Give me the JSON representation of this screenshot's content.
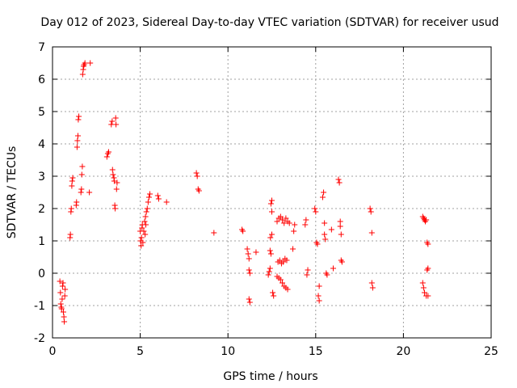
{
  "chart_data": {
    "type": "scatter",
    "title": "Day 012 of 2023, Sidereal Day-to-day VTEC variation (SDTVAR) for receiver usud",
    "xlabel": "GPS time / hours",
    "ylabel": "SDTVAR / TECUs",
    "xlim": [
      0,
      25
    ],
    "ylim": [
      -2,
      7
    ],
    "xticks": [
      0,
      5,
      10,
      15,
      20,
      25
    ],
    "yticks": [
      -2,
      -1,
      0,
      1,
      2,
      3,
      4,
      5,
      6,
      7
    ],
    "grid": true,
    "marker": "plus",
    "color": "#ff0000",
    "series": [
      {
        "points": [
          [
            0.42,
            -0.25
          ],
          [
            0.45,
            -0.6
          ],
          [
            0.47,
            -0.95
          ],
          [
            0.5,
            -1.05
          ],
          [
            0.52,
            -1.1
          ],
          [
            0.55,
            -0.8
          ],
          [
            0.57,
            -0.4
          ],
          [
            0.6,
            -0.3
          ],
          [
            0.62,
            -1.2
          ],
          [
            0.65,
            -1.35
          ],
          [
            0.67,
            -1.5
          ],
          [
            0.7,
            -0.7
          ],
          [
            0.72,
            -0.5
          ],
          [
            1.0,
            1.1
          ],
          [
            1.02,
            1.2
          ],
          [
            1.05,
            1.9
          ],
          [
            1.07,
            2.0
          ],
          [
            1.1,
            2.7
          ],
          [
            1.12,
            2.85
          ],
          [
            1.15,
            2.95
          ],
          [
            1.35,
            2.1
          ],
          [
            1.37,
            2.2
          ],
          [
            1.4,
            3.9
          ],
          [
            1.42,
            4.1
          ],
          [
            1.45,
            4.25
          ],
          [
            1.47,
            4.75
          ],
          [
            1.5,
            4.85
          ],
          [
            1.62,
            2.5
          ],
          [
            1.65,
            2.6
          ],
          [
            1.67,
            3.05
          ],
          [
            1.7,
            3.3
          ],
          [
            1.72,
            6.15
          ],
          [
            1.75,
            6.3
          ],
          [
            1.77,
            6.4
          ],
          [
            1.8,
            6.45
          ],
          [
            1.85,
            6.5
          ],
          [
            2.15,
            6.5
          ],
          [
            2.1,
            2.5
          ],
          [
            3.1,
            3.6
          ],
          [
            3.15,
            3.7
          ],
          [
            3.2,
            3.75
          ],
          [
            3.35,
            4.6
          ],
          [
            3.4,
            4.7
          ],
          [
            3.42,
            3.2
          ],
          [
            3.45,
            3.05
          ],
          [
            3.5,
            2.95
          ],
          [
            3.52,
            2.85
          ],
          [
            3.55,
            2.1
          ],
          [
            3.57,
            2.0
          ],
          [
            3.6,
            4.8
          ],
          [
            3.62,
            4.6
          ],
          [
            3.65,
            2.6
          ],
          [
            3.68,
            2.8
          ],
          [
            5.0,
            1.3
          ],
          [
            5.02,
            1.0
          ],
          [
            5.05,
            0.85
          ],
          [
            5.07,
            1.1
          ],
          [
            5.1,
            1.4
          ],
          [
            5.12,
            1.5
          ],
          [
            5.15,
            0.95
          ],
          [
            5.2,
            1.3
          ],
          [
            5.25,
            1.6
          ],
          [
            5.3,
            1.75
          ],
          [
            5.35,
            1.9
          ],
          [
            5.4,
            2.0
          ],
          [
            5.45,
            2.2
          ],
          [
            5.5,
            2.35
          ],
          [
            5.55,
            2.45
          ],
          [
            5.28,
            1.2
          ],
          [
            5.32,
            1.5
          ],
          [
            6.0,
            2.4
          ],
          [
            6.05,
            2.3
          ],
          [
            6.5,
            2.2
          ],
          [
            8.2,
            3.1
          ],
          [
            8.25,
            3.0
          ],
          [
            8.3,
            2.6
          ],
          [
            8.35,
            2.55
          ],
          [
            9.2,
            1.25
          ],
          [
            10.8,
            1.35
          ],
          [
            10.85,
            1.3
          ],
          [
            11.1,
            0.75
          ],
          [
            11.15,
            0.6
          ],
          [
            11.2,
            0.45
          ],
          [
            11.2,
            0.1
          ],
          [
            11.25,
            0.0
          ],
          [
            11.2,
            -0.8
          ],
          [
            11.25,
            -0.9
          ],
          [
            11.6,
            0.65
          ],
          [
            12.3,
            -0.05
          ],
          [
            12.35,
            0.05
          ],
          [
            12.4,
            0.15
          ],
          [
            12.4,
            0.7
          ],
          [
            12.45,
            0.6
          ],
          [
            12.42,
            1.1
          ],
          [
            12.5,
            1.2
          ],
          [
            12.45,
            2.15
          ],
          [
            12.5,
            2.25
          ],
          [
            12.5,
            1.9
          ],
          [
            12.55,
            -0.6
          ],
          [
            12.6,
            -0.7
          ],
          [
            12.8,
            1.6
          ],
          [
            12.9,
            1.7
          ],
          [
            13.0,
            1.75
          ],
          [
            13.1,
            1.65
          ],
          [
            13.2,
            1.55
          ],
          [
            13.3,
            1.7
          ],
          [
            13.4,
            1.6
          ],
          [
            13.5,
            1.55
          ],
          [
            12.85,
            0.35
          ],
          [
            12.95,
            0.4
          ],
          [
            13.05,
            0.3
          ],
          [
            13.15,
            0.35
          ],
          [
            13.25,
            0.45
          ],
          [
            13.35,
            0.4
          ],
          [
            12.8,
            -0.1
          ],
          [
            12.9,
            -0.15
          ],
          [
            13.0,
            -0.2
          ],
          [
            13.1,
            -0.3
          ],
          [
            13.2,
            -0.4
          ],
          [
            13.3,
            -0.45
          ],
          [
            13.4,
            -0.5
          ],
          [
            13.7,
            0.75
          ],
          [
            13.75,
            1.3
          ],
          [
            13.8,
            1.5
          ],
          [
            14.4,
            1.5
          ],
          [
            14.45,
            1.65
          ],
          [
            14.5,
            -0.05
          ],
          [
            14.55,
            0.1
          ],
          [
            14.95,
            2.0
          ],
          [
            15.0,
            1.9
          ],
          [
            15.05,
            0.95
          ],
          [
            15.1,
            0.9
          ],
          [
            15.15,
            -0.7
          ],
          [
            15.2,
            -0.85
          ],
          [
            15.2,
            -0.4
          ],
          [
            15.4,
            2.35
          ],
          [
            15.45,
            2.5
          ],
          [
            15.5,
            1.55
          ],
          [
            15.5,
            1.2
          ],
          [
            15.55,
            1.05
          ],
          [
            15.6,
            0.0
          ],
          [
            15.65,
            -0.05
          ],
          [
            15.9,
            1.35
          ],
          [
            16.0,
            0.15
          ],
          [
            16.3,
            2.9
          ],
          [
            16.35,
            2.8
          ],
          [
            16.4,
            1.6
          ],
          [
            16.4,
            1.45
          ],
          [
            16.45,
            1.2
          ],
          [
            16.45,
            0.4
          ],
          [
            16.5,
            0.35
          ],
          [
            18.1,
            2.0
          ],
          [
            18.15,
            1.9
          ],
          [
            18.2,
            1.25
          ],
          [
            18.2,
            -0.3
          ],
          [
            18.25,
            -0.45
          ],
          [
            21.1,
            1.75
          ],
          [
            21.15,
            1.7
          ],
          [
            21.2,
            1.65
          ],
          [
            21.25,
            1.6
          ],
          [
            21.3,
            1.65
          ],
          [
            21.35,
            0.95
          ],
          [
            21.4,
            0.9
          ],
          [
            21.35,
            0.1
          ],
          [
            21.4,
            0.15
          ],
          [
            21.1,
            -0.3
          ],
          [
            21.15,
            -0.45
          ],
          [
            21.2,
            -0.6
          ],
          [
            21.3,
            -0.7
          ],
          [
            21.4,
            -0.7
          ]
        ]
      }
    ]
  }
}
